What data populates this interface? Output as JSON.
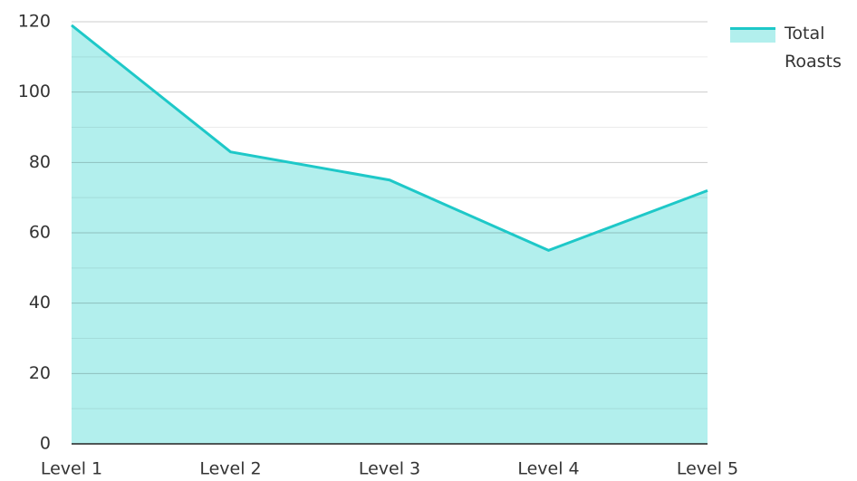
{
  "chart_data": {
    "type": "area",
    "categories": [
      "Level 1",
      "Level 2",
      "Level 3",
      "Level 4",
      "Level 5"
    ],
    "series": [
      {
        "name": "Total Roasts",
        "color": "#1ec8c8",
        "fill": "#b2efed",
        "values": [
          119,
          83,
          75,
          55,
          72
        ]
      }
    ],
    "ylim": [
      0,
      120
    ],
    "yticks": [
      0,
      20,
      40,
      60,
      80,
      100,
      120
    ],
    "yminor": [
      10,
      30,
      50,
      70,
      90,
      110
    ],
    "grid": true,
    "legend": "right"
  }
}
